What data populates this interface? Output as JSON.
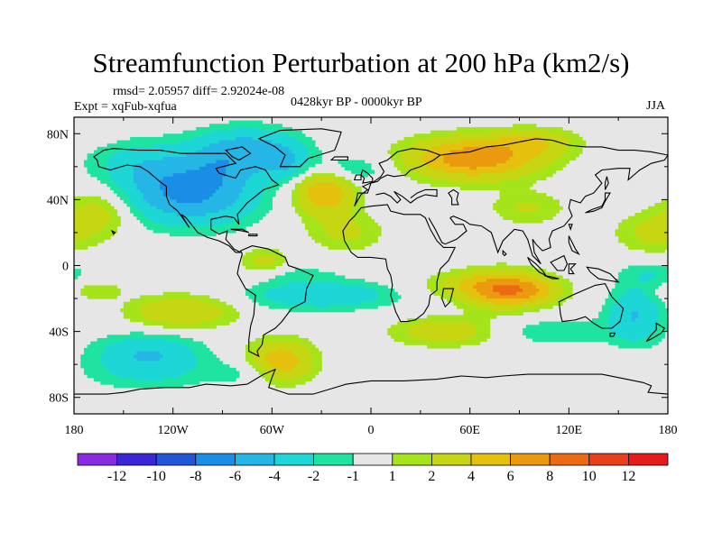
{
  "chart_data": {
    "type": "heatmap",
    "title": "Streamfunction Perturbation at 200 hPa (km2/s)",
    "stats_line": "rmsd= 2.05957 diff= 2.92024e-08",
    "experiment": "Expt = xqFub-xqfua",
    "period": "0428kyr BP - 0000kyr BP",
    "season": "JJA",
    "x_range": [
      -180,
      180
    ],
    "y_range": [
      -90,
      90
    ],
    "x_ticks": [
      {
        "value": -180,
        "label": "180"
      },
      {
        "value": -120,
        "label": "120W"
      },
      {
        "value": -60,
        "label": "60W"
      },
      {
        "value": 0,
        "label": "0"
      },
      {
        "value": 60,
        "label": "60E"
      },
      {
        "value": 120,
        "label": "120E"
      },
      {
        "value": 180,
        "label": "180"
      }
    ],
    "y_ticks": [
      {
        "value": 80,
        "label": "80N"
      },
      {
        "value": 40,
        "label": "40N"
      },
      {
        "value": 0,
        "label": "0"
      },
      {
        "value": -40,
        "label": "40S"
      },
      {
        "value": -80,
        "label": "80S"
      }
    ],
    "levels": [
      -12,
      -10,
      -8,
      -6,
      -4,
      -2,
      -1,
      1,
      2,
      4,
      6,
      8,
      10,
      12
    ],
    "colors": [
      "#8a2be2",
      "#3a26d6",
      "#2355d8",
      "#1a8ee6",
      "#25b6e6",
      "#1dd6d6",
      "#1fe3a0",
      "#e6e6e6",
      "#a5e31a",
      "#c6d612",
      "#e5c00d",
      "#eb9a10",
      "#ec6a14",
      "#e8401a",
      "#e61c1c"
    ],
    "colorbar_labels": [
      "-12",
      "-10",
      "-8",
      "-6",
      "-4",
      "-2",
      "-1",
      "1",
      "2",
      "4",
      "6",
      "8",
      "10",
      "12"
    ],
    "anomaly_centers": [
      {
        "lon": -145,
        "lat": 62,
        "value": -1.8,
        "sx": 24,
        "sy": 10
      },
      {
        "lon": -130,
        "lat": 52,
        "value": -2.6,
        "sx": 18,
        "sy": 14
      },
      {
        "lon": -105,
        "lat": 40,
        "value": -5.0,
        "sx": 26,
        "sy": 12
      },
      {
        "lon": -75,
        "lat": 72,
        "value": -4.2,
        "sx": 22,
        "sy": 9
      },
      {
        "lon": -92,
        "lat": 58,
        "value": -3.5,
        "sx": 18,
        "sy": 10
      },
      {
        "lon": -52,
        "lat": 62,
        "value": -3.2,
        "sx": 11,
        "sy": 8
      },
      {
        "lon": -15,
        "lat": 58,
        "value": -2.6,
        "sx": 18,
        "sy": 7
      },
      {
        "lon": -28,
        "lat": 45,
        "value": 6.2,
        "sx": 13,
        "sy": 10
      },
      {
        "lon": -15,
        "lat": 20,
        "value": 2.3,
        "sx": 16,
        "sy": 8
      },
      {
        "lon": -65,
        "lat": 2,
        "value": 2.8,
        "sx": 10,
        "sy": 6
      },
      {
        "lon": 62,
        "lat": 65,
        "value": 7.5,
        "sx": 28,
        "sy": 9
      },
      {
        "lon": 100,
        "lat": 75,
        "value": 3.0,
        "sx": 18,
        "sy": 6
      },
      {
        "lon": 95,
        "lat": 35,
        "value": 2.2,
        "sx": 16,
        "sy": 7
      },
      {
        "lon": 170,
        "lat": 20,
        "value": 2.4,
        "sx": 16,
        "sy": 9
      },
      {
        "lon": -165,
        "lat": 32,
        "value": 2.8,
        "sx": 14,
        "sy": 10
      },
      {
        "lon": -168,
        "lat": -15,
        "value": 2.0,
        "sx": 12,
        "sy": 4
      },
      {
        "lon": -115,
        "lat": -28,
        "value": 4.0,
        "sx": 22,
        "sy": 7
      },
      {
        "lon": -30,
        "lat": -18,
        "value": -4.0,
        "sx": 30,
        "sy": 6
      },
      {
        "lon": -50,
        "lat": -5,
        "value": -1.4,
        "sx": 22,
        "sy": 4
      },
      {
        "lon": -135,
        "lat": -52,
        "value": -3.6,
        "sx": 22,
        "sy": 8
      },
      {
        "lon": -135,
        "lat": -65,
        "value": -2.0,
        "sx": 28,
        "sy": 8
      },
      {
        "lon": -75,
        "lat": -65,
        "value": -1.6,
        "sx": 14,
        "sy": 6
      },
      {
        "lon": -55,
        "lat": -58,
        "value": 5.5,
        "sx": 14,
        "sy": 9
      },
      {
        "lon": 45,
        "lat": -40,
        "value": 3.6,
        "sx": 22,
        "sy": 6
      },
      {
        "lon": 80,
        "lat": -15,
        "value": 6.0,
        "sx": 16,
        "sy": 8
      },
      {
        "lon": 100,
        "lat": -15,
        "value": 3.2,
        "sx": 14,
        "sy": 6
      },
      {
        "lon": 60,
        "lat": -12,
        "value": 2.8,
        "sx": 20,
        "sy": 6
      },
      {
        "lon": 110,
        "lat": -40,
        "value": -1.8,
        "sx": 26,
        "sy": 6
      },
      {
        "lon": 160,
        "lat": -30,
        "value": -4.0,
        "sx": 12,
        "sy": 12
      },
      {
        "lon": 170,
        "lat": -5,
        "value": -1.8,
        "sx": 14,
        "sy": 6
      }
    ]
  }
}
